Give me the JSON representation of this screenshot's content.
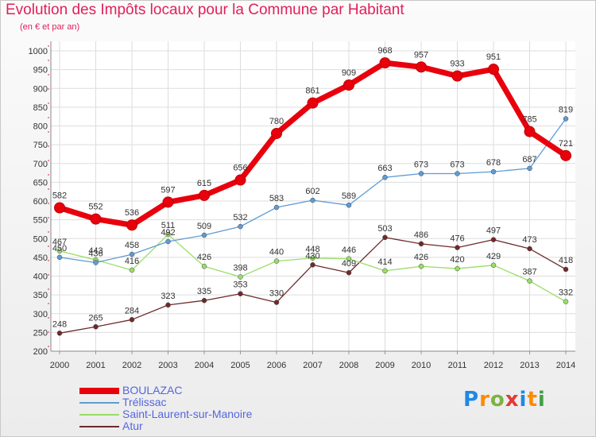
{
  "chart_data": {
    "type": "line",
    "title": "Evolution des Impôts locaux pour la Commune par Habitant",
    "subtitle": "(en € et par an)",
    "xlabel": "",
    "ylabel": "",
    "ylim": [
      200,
      1000
    ],
    "yticks": [
      "200",
      "250",
      "300",
      "350",
      "400",
      "450",
      "500",
      "550",
      "600",
      "650",
      "700",
      "750",
      "800",
      "850",
      "900",
      "950",
      "1000"
    ],
    "categories": [
      "2000",
      "2001",
      "2002",
      "2003",
      "2004",
      "2005",
      "2006",
      "2007",
      "2008",
      "2009",
      "2010",
      "2011",
      "2012",
      "2013",
      "2014"
    ],
    "grid": true,
    "legend_position": "bottom-left",
    "series": [
      {
        "name": "BOULAZAC",
        "color": "#e8000c",
        "values": [
          582,
          552,
          536,
          597,
          615,
          656,
          780,
          861,
          909,
          968,
          957,
          933,
          951,
          785,
          721
        ]
      },
      {
        "name": "Trélissac",
        "color": "#5f9bd4",
        "values": [
          450,
          436,
          458,
          492,
          509,
          532,
          583,
          602,
          589,
          663,
          673,
          673,
          678,
          687,
          819
        ]
      },
      {
        "name": "Saint-Laurent-sur-Manoire",
        "color": "#99dd66",
        "values": [
          467,
          443,
          416,
          511,
          426,
          398,
          440,
          448,
          446,
          414,
          426,
          420,
          429,
          387,
          332
        ]
      },
      {
        "name": "Atur",
        "color": "#6e2a2a",
        "values": [
          248,
          265,
          284,
          323,
          335,
          353,
          330,
          430,
          409,
          503,
          486,
          476,
          497,
          473,
          418
        ]
      }
    ]
  },
  "logo": {
    "text": "Proxiti"
  }
}
